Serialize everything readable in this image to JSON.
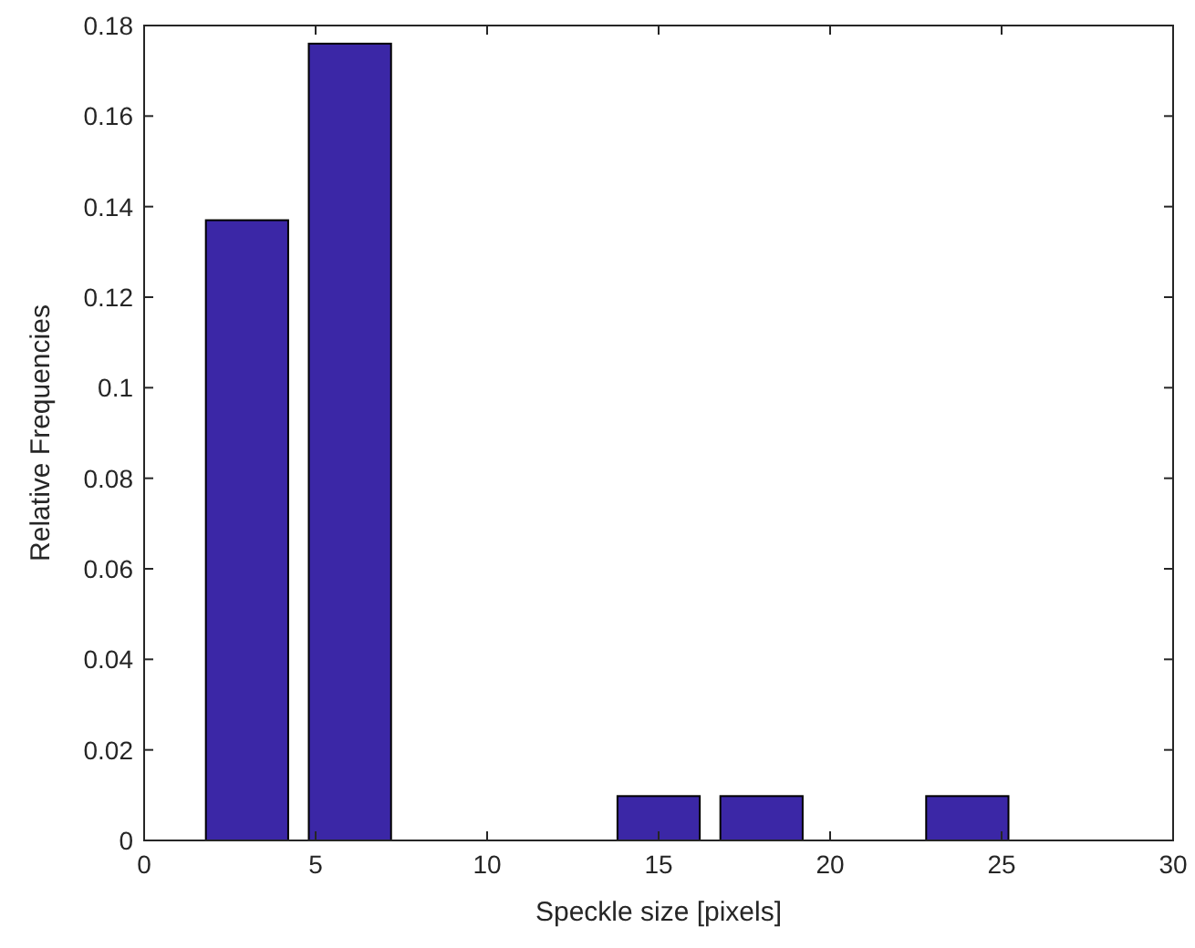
{
  "chart_data": {
    "type": "bar",
    "xlabel": "Speckle size [pixels]",
    "ylabel": "Relative Frequencies",
    "x": [
      3,
      6,
      15,
      18,
      24
    ],
    "values": [
      0.137,
      0.176,
      0.0098,
      0.0098,
      0.0098
    ],
    "color": "#3b27a6",
    "xlim": [
      0,
      30
    ],
    "xticks": [
      0,
      5,
      10,
      15,
      20,
      25,
      30
    ],
    "ylim": [
      0,
      0.18
    ],
    "yticks": [
      0,
      0.02,
      0.04,
      0.06,
      0.08,
      0.1,
      0.12,
      0.14,
      0.16,
      0.18
    ],
    "grid": false
  }
}
